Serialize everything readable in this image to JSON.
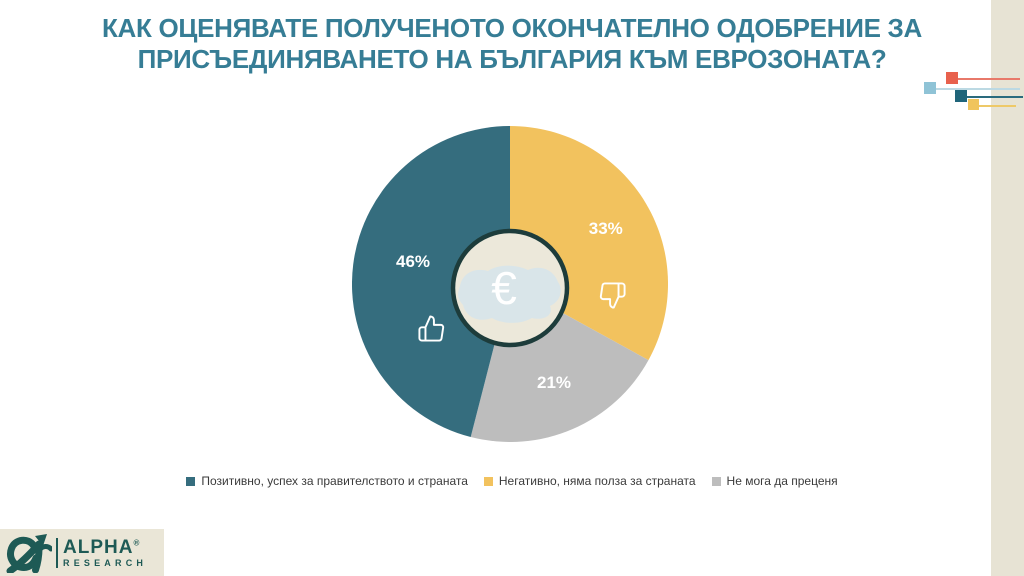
{
  "title": {
    "lines": [
      "КАК ОЦЕНЯВАТЕ ПОЛУЧЕНОТО ОКОНЧАТЕЛНО ОДОБРЕНИЕ ЗА",
      "ПРИСЪЕДИНЯВАНЕТО НА БЪЛГАРИЯ КЪМ ЕВРОЗОНАТА?"
    ],
    "color": "#367d95"
  },
  "chart_data": {
    "type": "pie",
    "title": "КАК ОЦЕНЯВАТЕ ПОЛУЧЕНОТО ОКОНЧАТЕЛНО ОДОБРЕНИЕ ЗА ПРИСЪЕДИНЯВАНЕТО НА БЪЛГАРИЯ КЪМ ЕВРОЗОНАТА?",
    "unit": "%",
    "series": [
      {
        "name": "Позитивно, успех за правителството и страната",
        "value": 46,
        "label": "46%",
        "color": "#356d7e",
        "icon": "thumbs-up"
      },
      {
        "name": "Негативно, няма полза за страната",
        "value": 33,
        "label": "33%",
        "color": "#f2c25e",
        "icon": "thumbs-down"
      },
      {
        "name": "Не мога да преценя",
        "value": 21,
        "label": "21%",
        "color": "#bdbdbd",
        "icon": ""
      }
    ],
    "draw_order": [
      1,
      2,
      0
    ],
    "start_angle_deg": 0,
    "clockwise": true,
    "legend_position": "bottom",
    "center": {
      "symbol": "€",
      "map": "bulgaria-silhouette",
      "fill": "#ece8da",
      "ring": "#1d3c3b",
      "map_color": "#d9e5e9",
      "symbol_color": "#ffffff"
    }
  },
  "decoration": {
    "squares": [
      {
        "color": "#e8614d",
        "line": "#e8796a"
      },
      {
        "color": "#8fc3d6",
        "line": "#bcd9e3"
      },
      {
        "color": "#20657a",
        "line": "#2a6b7e"
      },
      {
        "color": "#f0c45c",
        "line": "#eec968"
      }
    ]
  },
  "logo": {
    "brand": "ALPHA",
    "reg": "®",
    "sub": "RESEARCH",
    "color": "#1e5a55"
  },
  "colors": {
    "background": "#ffffff",
    "side_strip": "#e7e3d4",
    "logo_bg": "#eae6d7",
    "legend_text": "#3a3a3a"
  }
}
